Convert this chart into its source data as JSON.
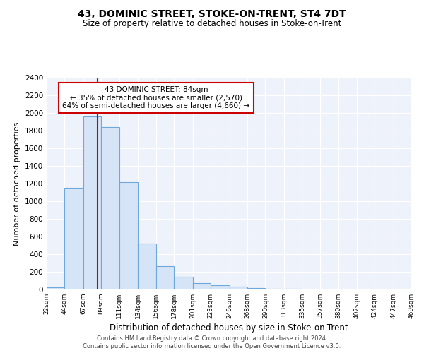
{
  "title": "43, DOMINIC STREET, STOKE-ON-TRENT, ST4 7DT",
  "subtitle": "Size of property relative to detached houses in Stoke-on-Trent",
  "xlabel": "Distribution of detached houses by size in Stoke-on-Trent",
  "ylabel": "Number of detached properties",
  "bin_edges": [
    22,
    44,
    67,
    89,
    111,
    134,
    156,
    178,
    201,
    223,
    246,
    268,
    290,
    313,
    335,
    357,
    380,
    402,
    424,
    447,
    469
  ],
  "bin_counts": [
    25,
    1150,
    1960,
    1840,
    1220,
    520,
    265,
    145,
    75,
    45,
    35,
    15,
    10,
    5,
    3,
    2,
    2,
    2,
    1,
    1
  ],
  "bar_color": "#d6e4f7",
  "bar_edge_color": "#6fa8dc",
  "vline_x": 84,
  "vline_color": "#cc0000",
  "annotation_title": "43 DOMINIC STREET: 84sqm",
  "annotation_line1": "← 35% of detached houses are smaller (2,570)",
  "annotation_line2": "64% of semi-detached houses are larger (4,660) →",
  "annotation_box_edge": "#cc0000",
  "ylim": [
    0,
    2400
  ],
  "yticks": [
    0,
    200,
    400,
    600,
    800,
    1000,
    1200,
    1400,
    1600,
    1800,
    2000,
    2200,
    2400
  ],
  "tick_labels": [
    "22sqm",
    "44sqm",
    "67sqm",
    "89sqm",
    "111sqm",
    "134sqm",
    "156sqm",
    "178sqm",
    "201sqm",
    "223sqm",
    "246sqm",
    "268sqm",
    "290sqm",
    "313sqm",
    "335sqm",
    "357sqm",
    "380sqm",
    "402sqm",
    "424sqm",
    "447sqm",
    "469sqm"
  ],
  "footer1": "Contains HM Land Registry data © Crown copyright and database right 2024.",
  "footer2": "Contains public sector information licensed under the Open Government Licence v3.0.",
  "bg_color": "#ffffff",
  "plot_bg_color": "#eef2fa"
}
